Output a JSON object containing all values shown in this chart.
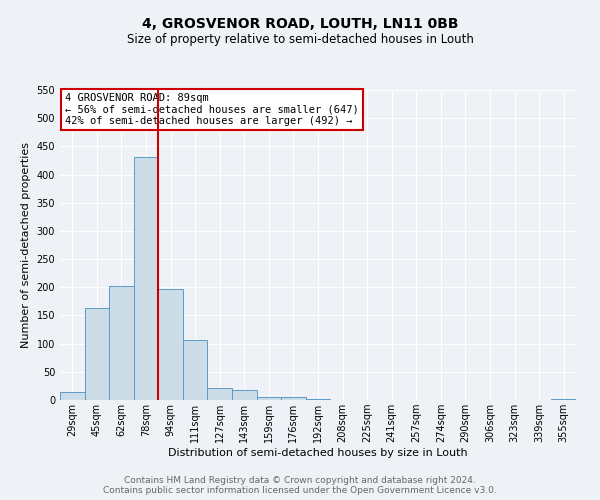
{
  "title": "4, GROSVENOR ROAD, LOUTH, LN11 0BB",
  "subtitle": "Size of property relative to semi-detached houses in Louth",
  "xlabel": "Distribution of semi-detached houses by size in Louth",
  "ylabel": "Number of semi-detached properties",
  "bar_labels": [
    "29sqm",
    "45sqm",
    "62sqm",
    "78sqm",
    "94sqm",
    "111sqm",
    "127sqm",
    "143sqm",
    "159sqm",
    "176sqm",
    "192sqm",
    "208sqm",
    "225sqm",
    "241sqm",
    "257sqm",
    "274sqm",
    "290sqm",
    "306sqm",
    "323sqm",
    "339sqm",
    "355sqm"
  ],
  "bar_values": [
    14,
    163,
    203,
    432,
    197,
    106,
    21,
    18,
    6,
    6,
    1,
    0,
    0,
    0,
    0,
    0,
    0,
    0,
    0,
    0,
    1
  ],
  "bar_color": "#ccdde8",
  "bar_edge_color": "#5b9bc8",
  "ylim": [
    0,
    550
  ],
  "yticks": [
    0,
    50,
    100,
    150,
    200,
    250,
    300,
    350,
    400,
    450,
    500,
    550
  ],
  "vline_x_bar_idx": 4,
  "vline_color": "#cc0000",
  "annotation_title": "4 GROSVENOR ROAD: 89sqm",
  "annotation_line1": "← 56% of semi-detached houses are smaller (647)",
  "annotation_line2": "42% of semi-detached houses are larger (492) →",
  "annotation_box_color": "#cc0000",
  "footer_line1": "Contains HM Land Registry data © Crown copyright and database right 2024.",
  "footer_line2": "Contains public sector information licensed under the Open Government Licence v3.0.",
  "bg_color": "#eef2f6",
  "grid_color": "#ffffff",
  "title_fontsize": 10,
  "subtitle_fontsize": 8.5,
  "axis_label_fontsize": 8,
  "tick_fontsize": 7,
  "annotation_fontsize": 7.5,
  "footer_fontsize": 6.5
}
